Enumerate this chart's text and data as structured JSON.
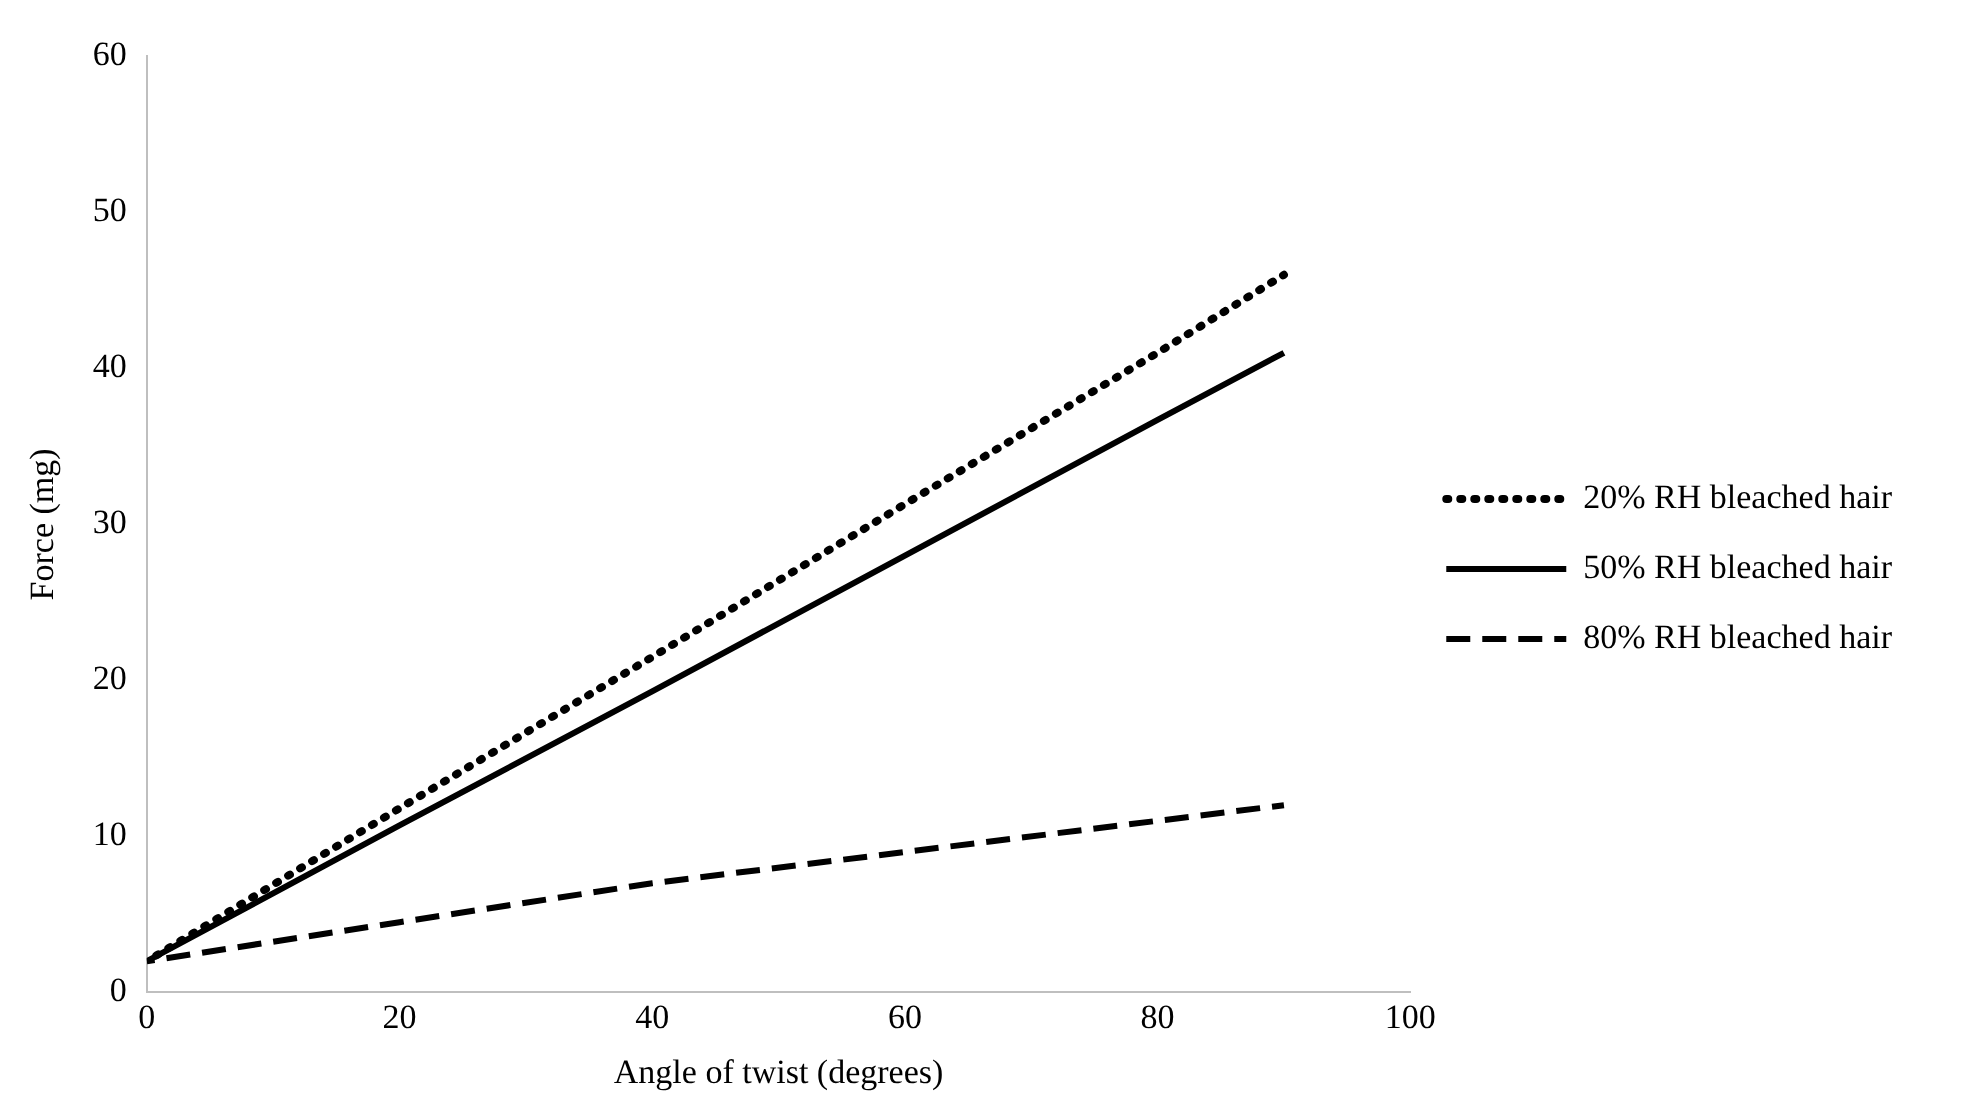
{
  "chart_data": {
    "type": "line",
    "xlabel": "Angle of twist (degrees)",
    "ylabel": "Force (mg)",
    "xlim": [
      0,
      100
    ],
    "xticks": [
      0,
      20,
      40,
      60,
      80,
      100
    ],
    "ylim": [
      0,
      60
    ],
    "yticks": [
      0,
      10,
      20,
      30,
      40,
      50,
      60
    ],
    "grid": false,
    "legend": "right",
    "marker": "none",
    "series": [
      {
        "name": "20% RH bleached hair",
        "color": "#000000",
        "line_style": "dotted",
        "x": [
          0,
          20,
          40,
          60,
          80,
          90
        ],
        "values": [
          2,
          11.8,
          21.5,
          31.3,
          41,
          46
        ]
      },
      {
        "name": "50% RH bleached hair",
        "color": "#000000",
        "line_style": "solid",
        "x": [
          0,
          20,
          40,
          60,
          80,
          90
        ],
        "values": [
          2,
          10.7,
          19.3,
          28,
          36.7,
          41
        ]
      },
      {
        "name": "80% RH bleached hair",
        "color": "#000000",
        "line_style": "dashed",
        "x": [
          0,
          20,
          40,
          60,
          80,
          90
        ],
        "values": [
          2,
          4.5,
          7,
          9,
          11,
          12
        ]
      }
    ]
  }
}
